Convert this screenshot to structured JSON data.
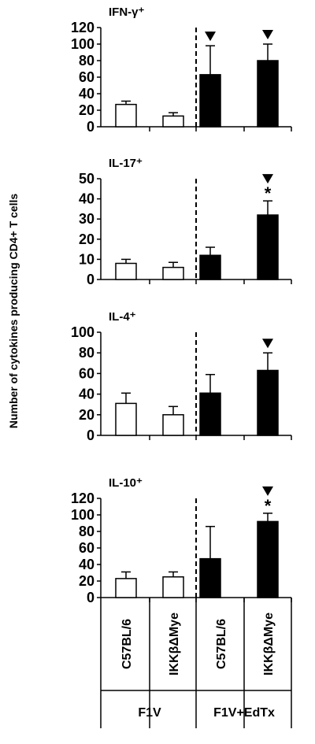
{
  "ylabel": "Number of cytokines producing CD4+ T cells",
  "categories": [
    "C57BL/6",
    "IKKβΔMye",
    "C57BL/6",
    "IKKβΔMye"
  ],
  "groups": [
    "F1V",
    "F1V+EdTx"
  ],
  "colors": {
    "control": "#ffffff",
    "treated": "#000000"
  },
  "chart_data": [
    {
      "type": "bar",
      "title": "IFN-γ⁺",
      "categories": [
        "C57BL/6",
        "IKKβΔMye",
        "C57BL/6",
        "IKKβΔMye"
      ],
      "groups": [
        "F1V",
        "F1V",
        "F1V+EdTx",
        "F1V+EdTx"
      ],
      "values": [
        27,
        13,
        63,
        80
      ],
      "errors": [
        4,
        4,
        35,
        20
      ],
      "ylim": [
        0,
        120
      ],
      "yticks": [
        0,
        20,
        40,
        60,
        80,
        100,
        120
      ],
      "annotations": [
        "",
        "",
        "▼",
        "▼"
      ],
      "grid": false
    },
    {
      "type": "bar",
      "title": "IL-17⁺",
      "categories": [
        "C57BL/6",
        "IKKβΔMye",
        "C57BL/6",
        "IKKβΔMye"
      ],
      "groups": [
        "F1V",
        "F1V",
        "F1V+EdTx",
        "F1V+EdTx"
      ],
      "values": [
        8,
        6,
        12,
        32
      ],
      "errors": [
        2,
        2.5,
        4,
        7
      ],
      "ylim": [
        0,
        50
      ],
      "yticks": [
        0,
        10,
        20,
        30,
        40,
        50
      ],
      "annotations": [
        "",
        "",
        "",
        "▼*"
      ],
      "grid": false
    },
    {
      "type": "bar",
      "title": "IL-4⁺",
      "categories": [
        "C57BL/6",
        "IKKβΔMye",
        "C57BL/6",
        "IKKβΔMye"
      ],
      "groups": [
        "F1V",
        "F1V",
        "F1V+EdTx",
        "F1V+EdTx"
      ],
      "values": [
        31,
        20,
        41,
        63
      ],
      "errors": [
        10,
        8,
        18,
        17
      ],
      "ylim": [
        0,
        100
      ],
      "yticks": [
        0,
        20,
        40,
        60,
        80,
        100
      ],
      "annotations": [
        "",
        "",
        "",
        "▼"
      ],
      "grid": false
    },
    {
      "type": "bar",
      "title": "IL-10⁺",
      "categories": [
        "C57BL/6",
        "IKKβΔMye",
        "C57BL/6",
        "IKKβΔMye"
      ],
      "groups": [
        "F1V",
        "F1V",
        "F1V+EdTx",
        "F1V+EdTx"
      ],
      "values": [
        23,
        25,
        47,
        92
      ],
      "errors": [
        8,
        6,
        39,
        10
      ],
      "ylim": [
        0,
        120
      ],
      "yticks": [
        0,
        20,
        40,
        60,
        80,
        100,
        120
      ],
      "annotations": [
        "",
        "",
        "",
        "▼*"
      ],
      "grid": false
    }
  ]
}
